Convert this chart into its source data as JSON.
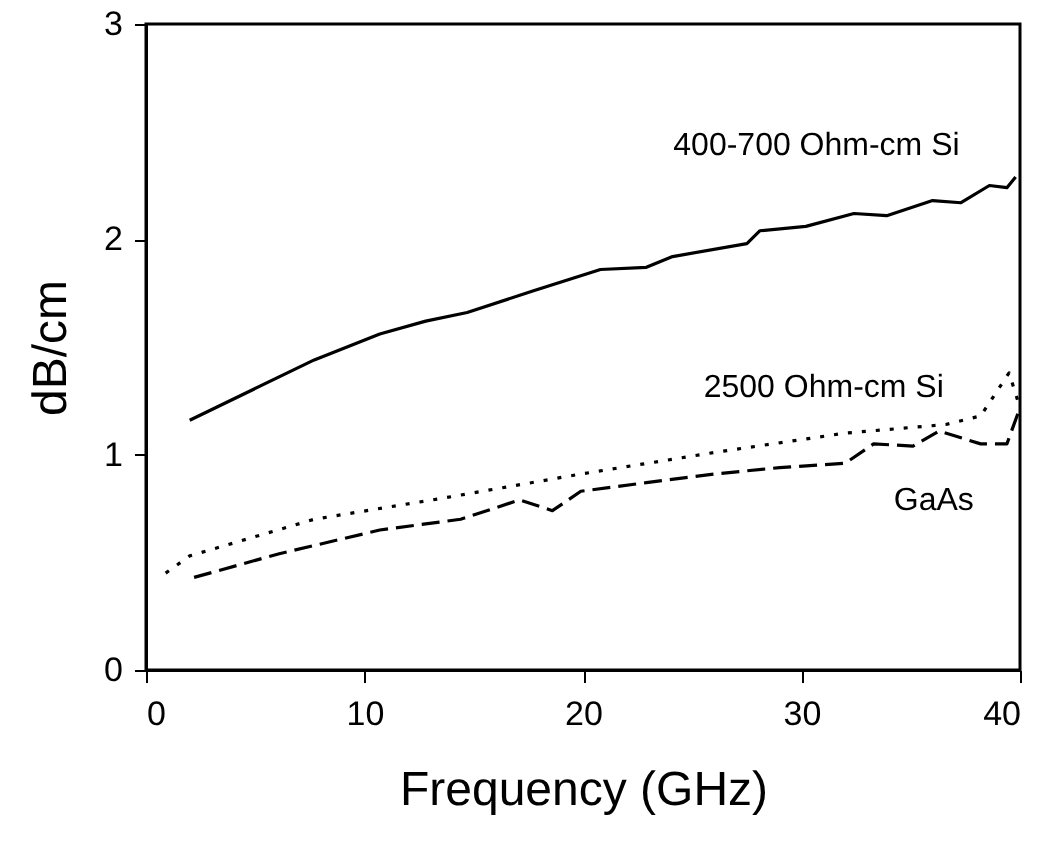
{
  "chart_data": {
    "type": "line",
    "xlabel": "Frequency (GHz)",
    "ylabel": "dB/cm",
    "xlim": [
      0,
      40
    ],
    "xticks": [
      0,
      10,
      20,
      30,
      40
    ],
    "ylim": [
      0,
      3
    ],
    "yticks": [
      0,
      1,
      2,
      3
    ],
    "grid": false,
    "marker": "none",
    "series": [
      {
        "name": "400-700 Ohm-cm Si",
        "color": "#000000",
        "line_style": "solid",
        "x": [
          2.0,
          7.7,
          10.7,
          12.8,
          14.7,
          17.7,
          20.8,
          22.9,
          24.1,
          27.5,
          28.1,
          30.2,
          32.4,
          33.9,
          36.0,
          37.3,
          38.6,
          39.4,
          39.8
        ],
        "values": [
          1.16,
          1.44,
          1.56,
          1.62,
          1.66,
          1.76,
          1.86,
          1.87,
          1.92,
          1.98,
          2.04,
          2.06,
          2.12,
          2.11,
          2.18,
          2.17,
          2.25,
          2.24,
          2.29
        ]
      },
      {
        "name": "2500 Ohm-cm Si",
        "color": "#000000",
        "line_style": "dotted",
        "x": [
          0.9,
          2.0,
          7.7,
          13.7,
          19.9,
          26.0,
          32.0,
          36.6,
          38.2,
          39.5,
          39.9
        ],
        "values": [
          0.45,
          0.53,
          0.7,
          0.8,
          0.91,
          1.01,
          1.1,
          1.14,
          1.18,
          1.38,
          1.25
        ]
      },
      {
        "name": "GaAs",
        "color": "#000000",
        "line_style": "dashed",
        "x": [
          2.2,
          6.1,
          10.7,
          14.4,
          17.1,
          18.6,
          19.9,
          22.9,
          26.0,
          29.0,
          32.0,
          33.3,
          35.1,
          36.3,
          38.2,
          39.4,
          39.9
        ],
        "values": [
          0.43,
          0.54,
          0.65,
          0.7,
          0.79,
          0.74,
          0.83,
          0.87,
          0.91,
          0.94,
          0.96,
          1.05,
          1.04,
          1.11,
          1.05,
          1.05,
          1.19
        ]
      }
    ]
  }
}
